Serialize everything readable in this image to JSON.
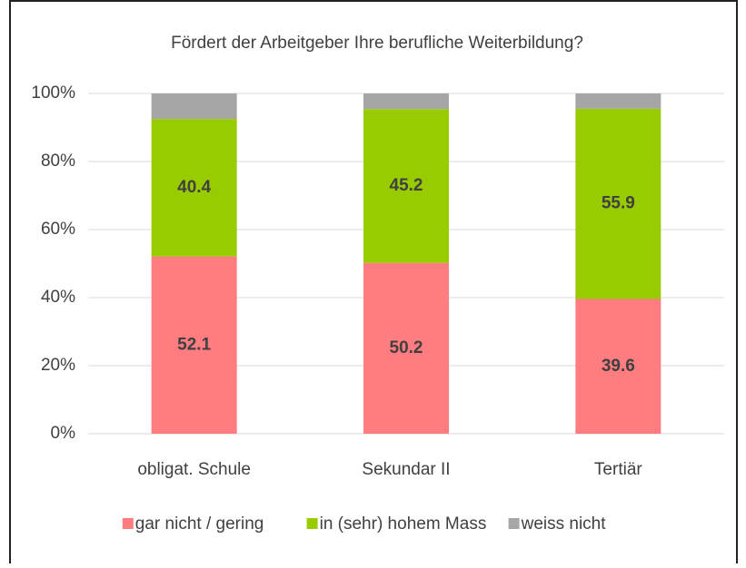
{
  "chart_data": {
    "type": "stacked_bar",
    "title": "Fördert der Arbeitgeber Ihre berufliche Weiterbildung?",
    "categories": [
      "obligat. Schule",
      "Sekundar II",
      "Tertiär"
    ],
    "series": [
      {
        "name": "gar nicht / gering",
        "color": "#ff7c80",
        "values": [
          52.1,
          50.2,
          39.6
        ],
        "labels_shown": true
      },
      {
        "name": "in (sehr) hohem Mass",
        "color": "#99cc00",
        "values": [
          40.4,
          45.2,
          55.9
        ],
        "labels_shown": true
      },
      {
        "name": "weiss nicht",
        "color": "#a6a6a6",
        "values": [
          7.5,
          4.6,
          4.5
        ],
        "labels_shown": false
      }
    ],
    "ylim": [
      0,
      100
    ],
    "yticks": [
      {
        "value": 0,
        "label": "0%"
      },
      {
        "value": 20,
        "label": "20%"
      },
      {
        "value": 40,
        "label": "40%"
      },
      {
        "value": 60,
        "label": "60%"
      },
      {
        "value": 80,
        "label": "80%"
      },
      {
        "value": 100,
        "label": "100%"
      }
    ],
    "grid": true,
    "legend": "bottom"
  }
}
